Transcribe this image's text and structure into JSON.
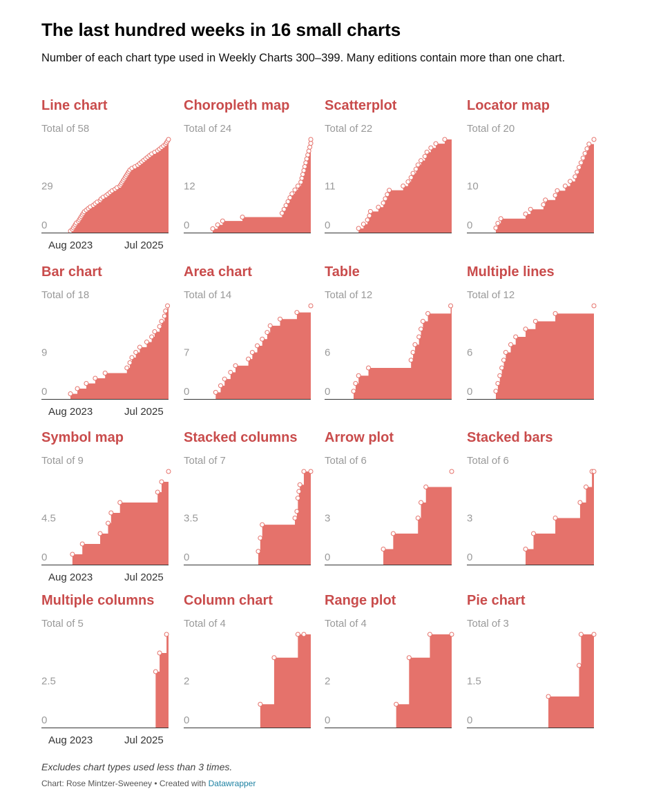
{
  "title": "The last hundred weeks in 16 small charts",
  "subtitle": "Number of each chart type used in Weekly Charts 300–399. Many editions contain more than one chart.",
  "notes": "Excludes chart types used less than 3 times.",
  "source_prefix": "Chart: Rose Mintzer-Sweeney • Created with ",
  "source_link": "Datawrapper",
  "colors": {
    "area": "#e5726b",
    "title": "#c94c4c",
    "marker_stroke": "#e5726b",
    "marker_fill": "#ffffff"
  },
  "x_labels": [
    "Aug 2023",
    "Jul 2025"
  ],
  "chart_data": [
    {
      "type": "area",
      "title": "Line chart",
      "total_label": "Total of 58",
      "y_ticks": [
        "0",
        "29"
      ],
      "ylim": [
        0,
        58
      ],
      "x": [
        300,
        302,
        303,
        304,
        305,
        306,
        308,
        309,
        310,
        311,
        312,
        313,
        314,
        316,
        318,
        320,
        323,
        325,
        327,
        330,
        331,
        333,
        336,
        338,
        340,
        342,
        345,
        347,
        350,
        351,
        352,
        353,
        354,
        355,
        356,
        357,
        358,
        359,
        360,
        362,
        365,
        368,
        370,
        372,
        374,
        376,
        378,
        380,
        382,
        385,
        388,
        390,
        392,
        394,
        396,
        397,
        398,
        399
      ],
      "values": [
        1,
        2,
        3,
        4,
        5,
        6,
        7,
        8,
        9,
        10,
        11,
        12,
        13,
        14,
        15,
        16,
        17,
        18,
        19,
        20,
        21,
        22,
        23,
        24,
        25,
        26,
        27,
        28,
        29,
        30,
        31,
        32,
        33,
        34,
        35,
        36,
        37,
        38,
        39,
        40,
        41,
        42,
        43,
        44,
        45,
        46,
        47,
        48,
        49,
        50,
        51,
        52,
        53,
        54,
        55,
        56,
        57,
        58
      ]
    },
    {
      "type": "area",
      "title": "Choropleth map",
      "total_label": "Total of 24",
      "y_ticks": [
        "0",
        "12"
      ],
      "ylim": [
        0,
        24
      ],
      "x": [
        300,
        305,
        310,
        330,
        370,
        372,
        374,
        376,
        378,
        380,
        383,
        386,
        389,
        390,
        391,
        392,
        393,
        394,
        395,
        396,
        397,
        398,
        399,
        399.5
      ],
      "values": [
        1,
        2,
        3,
        4,
        5,
        6,
        7,
        8,
        9,
        10,
        11,
        12,
        13,
        14,
        15,
        16,
        17,
        18,
        19,
        20,
        21,
        22,
        23,
        24
      ]
    },
    {
      "type": "area",
      "title": "Scatterplot",
      "total_label": "Total of 22",
      "y_ticks": [
        "0",
        "11"
      ],
      "ylim": [
        0,
        22
      ],
      "x": [
        305,
        310,
        314,
        316,
        317,
        325,
        330,
        332,
        334,
        336,
        350,
        355,
        358,
        360,
        363,
        365,
        368,
        372,
        374,
        378,
        383,
        392
      ],
      "values": [
        1,
        2,
        3,
        4,
        5,
        6,
        7,
        8,
        9,
        10,
        11,
        12,
        13,
        14,
        15,
        16,
        17,
        18,
        19,
        20,
        21,
        22
      ]
    },
    {
      "type": "area",
      "title": "Locator map",
      "total_label": "Total of 20",
      "y_ticks": [
        "0",
        "10"
      ],
      "ylim": [
        0,
        20
      ],
      "x": [
        300,
        302,
        305,
        330,
        335,
        348,
        350,
        360,
        362,
        370,
        375,
        380,
        382,
        384,
        386,
        388,
        390,
        392,
        394,
        399
      ],
      "values": [
        1,
        2,
        3,
        4,
        5,
        6,
        7,
        8,
        9,
        10,
        11,
        12,
        13,
        14,
        15,
        16,
        17,
        18,
        19,
        20
      ]
    },
    {
      "type": "area",
      "title": "Bar chart",
      "total_label": "Total of 18",
      "y_ticks": [
        "0",
        "9"
      ],
      "ylim": [
        0,
        18
      ],
      "x": [
        300,
        307,
        316,
        325,
        335,
        357,
        360,
        362,
        366,
        370,
        377,
        382,
        385,
        390,
        392,
        395,
        396,
        398
      ],
      "values": [
        1,
        2,
        3,
        4,
        5,
        6,
        7,
        8,
        9,
        10,
        11,
        12,
        13,
        14,
        15,
        16,
        17,
        18
      ]
    },
    {
      "type": "area",
      "title": "Area chart",
      "total_label": "Total of 14",
      "y_ticks": [
        "0",
        "7"
      ],
      "ylim": [
        0,
        14
      ],
      "x": [
        303,
        308,
        312,
        318,
        323,
        336,
        340,
        345,
        350,
        355,
        358,
        368,
        385,
        428
      ],
      "values": [
        1,
        2,
        3,
        4,
        5,
        6,
        7,
        8,
        9,
        10,
        11,
        12,
        13,
        14
      ]
    },
    {
      "type": "area",
      "title": "Table",
      "total_label": "Total of 12",
      "y_ticks": [
        "0",
        "6"
      ],
      "ylim": [
        0,
        12
      ],
      "x": [
        300,
        302,
        305,
        315,
        358,
        360,
        362,
        366,
        368,
        370,
        375,
        398
      ],
      "values": [
        1,
        2,
        3,
        4,
        5,
        6,
        7,
        8,
        9,
        10,
        11,
        12
      ]
    },
    {
      "type": "area",
      "title": "Multiple lines",
      "total_label": "Total of 12",
      "y_ticks": [
        "0",
        "6"
      ],
      "ylim": [
        0,
        12
      ],
      "x": [
        300,
        302,
        304,
        306,
        308,
        310,
        315,
        320,
        330,
        340,
        360,
        399
      ],
      "values": [
        1,
        2,
        3,
        4,
        5,
        6,
        7,
        8,
        9,
        10,
        11,
        12
      ]
    },
    {
      "type": "area",
      "title": "Symbol map",
      "total_label": "Total of 9",
      "y_ticks": [
        "0",
        "4.5"
      ],
      "ylim": [
        0,
        9
      ],
      "x": [
        302,
        312,
        330,
        338,
        341,
        350,
        388,
        392,
        399
      ],
      "values": [
        1,
        2,
        3,
        4,
        5,
        6,
        7,
        8,
        9
      ]
    },
    {
      "type": "area",
      "title": "Stacked columns",
      "total_label": "Total of 7",
      "y_ticks": [
        "0",
        "3.5"
      ],
      "ylim": [
        0,
        7
      ],
      "x": [
        346,
        348,
        350,
        383,
        385,
        386,
        387,
        388,
        392,
        399
      ],
      "values": [
        1,
        2,
        3,
        3.5,
        4,
        5,
        5.5,
        6,
        7,
        7
      ]
    },
    {
      "type": "area",
      "title": "Arrow plot",
      "total_label": "Total of 6",
      "y_ticks": [
        "0",
        "3"
      ],
      "ylim": [
        0,
        6
      ],
      "x": [
        330,
        340,
        365,
        368,
        373,
        399
      ],
      "values": [
        1,
        2,
        3,
        4,
        5,
        6
      ]
    },
    {
      "type": "area",
      "title": "Stacked bars",
      "total_label": "Total of 6",
      "y_ticks": [
        "0",
        "3"
      ],
      "ylim": [
        0,
        6
      ],
      "x": [
        330,
        338,
        360,
        385,
        391,
        397,
        399
      ],
      "values": [
        1,
        2,
        3,
        4,
        5,
        6,
        6
      ]
    },
    {
      "type": "area",
      "title": "Multiple columns",
      "total_label": "Total of 5",
      "y_ticks": [
        "0",
        "2.5"
      ],
      "ylim": [
        0,
        5
      ],
      "x": [
        386,
        390,
        397
      ],
      "values": [
        3,
        4,
        5
      ]
    },
    {
      "type": "area",
      "title": "Column chart",
      "total_label": "Total of 4",
      "y_ticks": [
        "0",
        "2"
      ],
      "ylim": [
        0,
        4
      ],
      "x": [
        348,
        362,
        386,
        392
      ],
      "values": [
        1,
        3,
        4,
        4
      ]
    },
    {
      "type": "area",
      "title": "Range plot",
      "total_label": "Total of 4",
      "y_ticks": [
        "0",
        "2"
      ],
      "ylim": [
        0,
        4
      ],
      "x": [
        343,
        356,
        377,
        399
      ],
      "values": [
        1,
        3,
        4,
        4
      ]
    },
    {
      "type": "area",
      "title": "Pie chart",
      "total_label": "Total of 3",
      "y_ticks": [
        "0",
        "1.5"
      ],
      "ylim": [
        0,
        3
      ],
      "x": [
        353,
        384,
        386,
        399
      ],
      "values": [
        1,
        2,
        3,
        3
      ]
    }
  ]
}
